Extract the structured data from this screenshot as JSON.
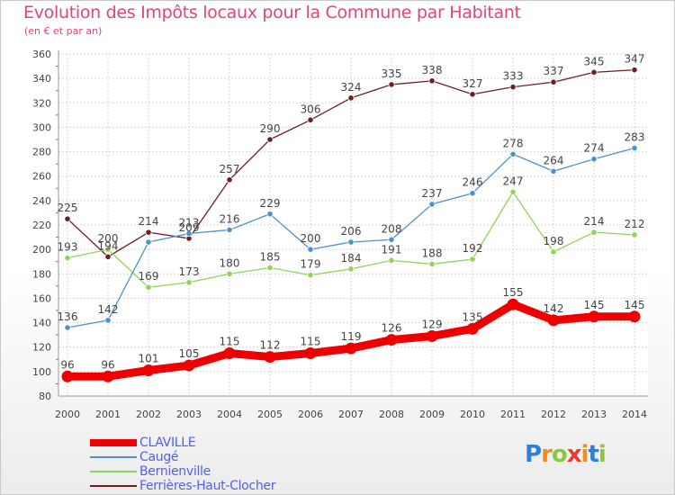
{
  "header": {
    "title": "Evolution des Impôts locaux pour la Commune par Habitant",
    "subtitle": "(en € et par an)"
  },
  "brand": {
    "letters": [
      "P",
      "r",
      "o",
      "x",
      "i",
      "t",
      "i"
    ],
    "colors": [
      "#2f7fd9",
      "#f28c1f",
      "#8cc63e",
      "#e63b2e",
      "#f28c1f",
      "#2f7fd9",
      "#8cc63e"
    ]
  },
  "chart_data": {
    "type": "line",
    "title": "Evolution des Impôts locaux pour la Commune par Habitant",
    "subtitle": "(en € et par an)",
    "xlabel": "",
    "ylabel": "",
    "x": [
      "2000",
      "2001",
      "2002",
      "2003",
      "2004",
      "2005",
      "2006",
      "2007",
      "2008",
      "2009",
      "2010",
      "2011",
      "2012",
      "2013",
      "2014"
    ],
    "ylim": [
      80,
      360
    ],
    "yticks": [
      80,
      100,
      120,
      140,
      160,
      180,
      200,
      220,
      240,
      260,
      280,
      300,
      320,
      340,
      360
    ],
    "grid": true,
    "legend_position": "bottom-left",
    "series": [
      {
        "name": "CLAVILLE",
        "color": "#ee0000",
        "values": [
          96,
          96,
          101,
          105,
          115,
          112,
          115,
          119,
          126,
          129,
          135,
          155,
          142,
          145,
          145
        ],
        "labels": [
          "96",
          "96",
          "101",
          "105",
          "115",
          "112",
          "115",
          "119",
          "126",
          "129",
          "135",
          "155",
          "142",
          "145",
          "145"
        ]
      },
      {
        "name": "Caugé",
        "color": "#4f8fcc",
        "values": [
          136,
          142,
          206,
          213,
          216,
          229,
          200,
          206,
          208,
          237,
          246,
          278,
          264,
          274,
          283
        ],
        "labels": [
          "136",
          "142",
          "",
          "213",
          "216",
          "229",
          "200",
          "206",
          "208",
          "237",
          "246",
          "278",
          "264",
          "274",
          "283"
        ]
      },
      {
        "name": "Bernienville",
        "color": "#8fd45a",
        "values": [
          193,
          200,
          169,
          173,
          180,
          185,
          179,
          184,
          191,
          188,
          192,
          247,
          198,
          214,
          212
        ],
        "labels": [
          "193",
          "200",
          "169",
          "173",
          "180",
          "185",
          "179",
          "184",
          "191",
          "188",
          "192",
          "247",
          "198",
          "214",
          "212"
        ]
      },
      {
        "name": "Ferrières-Haut-Clocher",
        "color": "#6e1f24",
        "values": [
          225,
          194,
          214,
          209,
          257,
          290,
          306,
          324,
          335,
          338,
          327,
          333,
          337,
          345,
          347
        ],
        "labels": [
          "225",
          "194",
          "214",
          "209",
          "257",
          "290",
          "306",
          "324",
          "335",
          "338",
          "327",
          "333",
          "337",
          "345",
          "347"
        ]
      }
    ]
  }
}
